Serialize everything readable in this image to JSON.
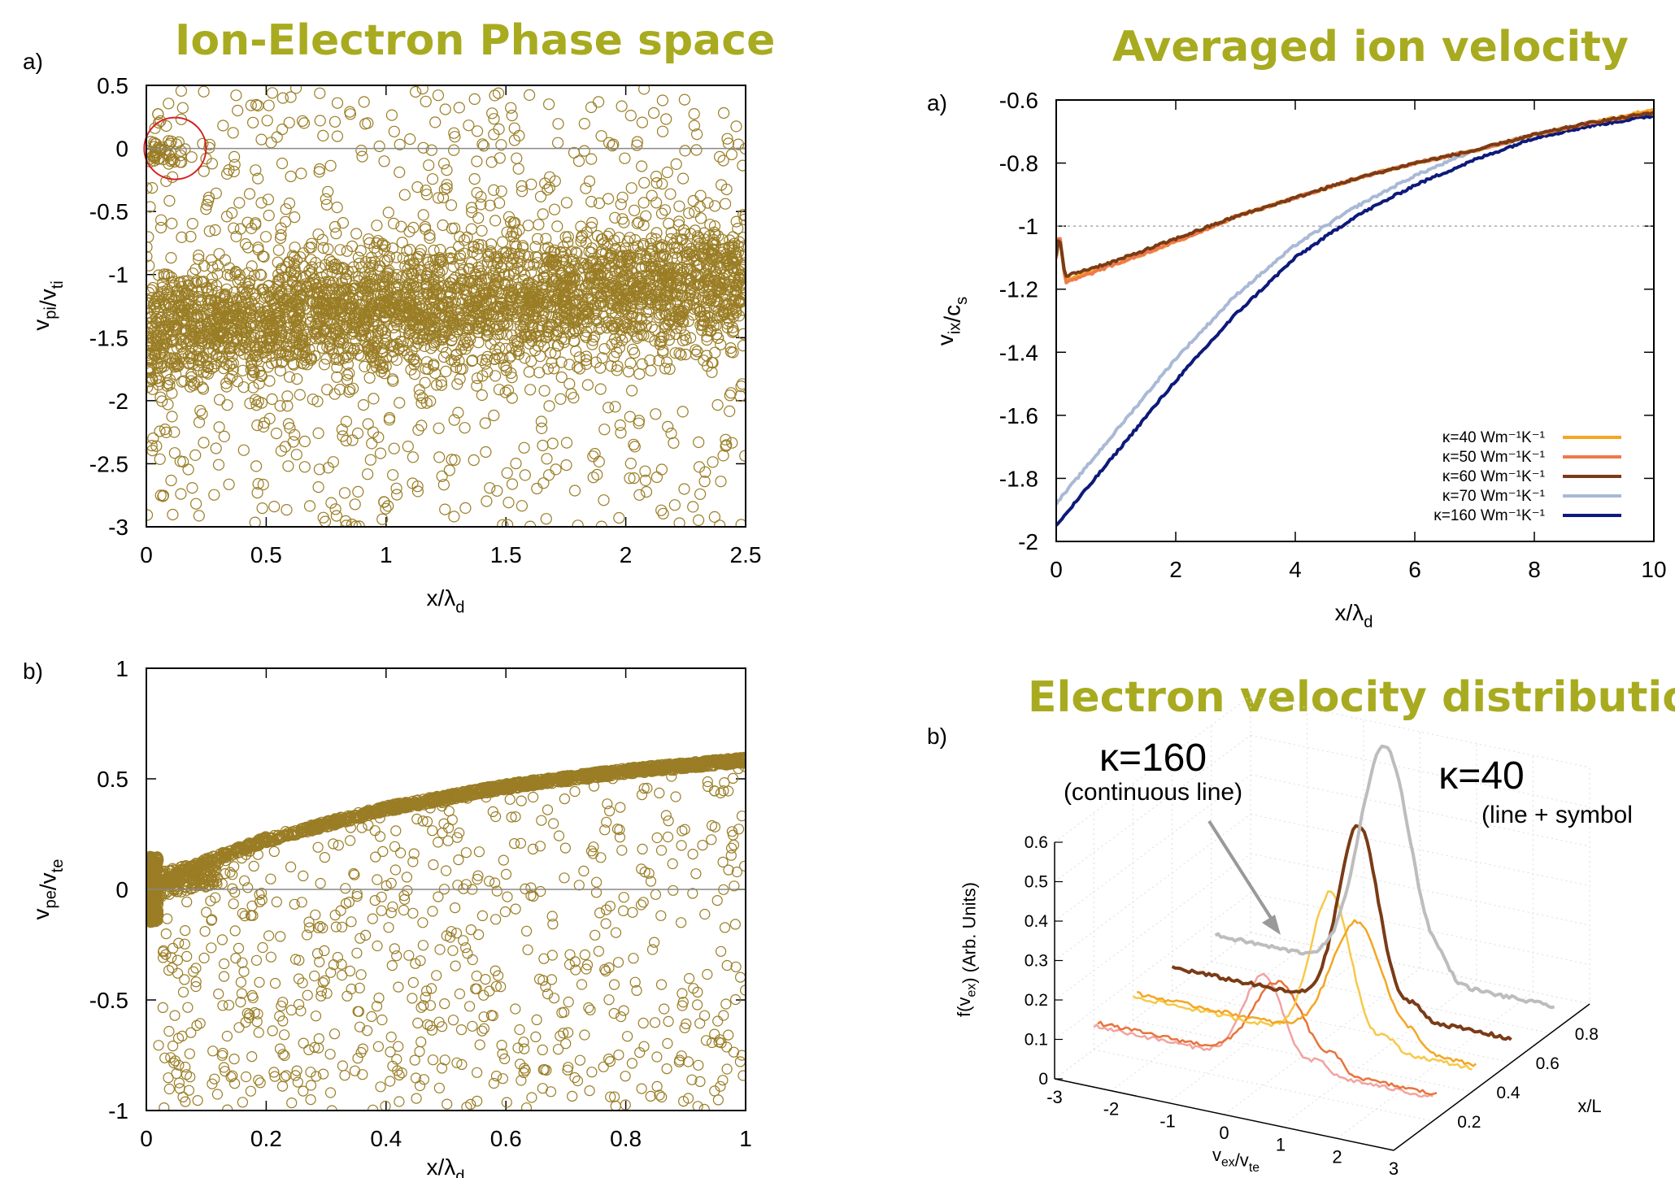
{
  "titles": {
    "phase_space": "Ion-Electron Phase space",
    "avg_velocity": "Averaged ion velocity",
    "edist": "Electron velocity distribution"
  },
  "colors": {
    "title": "#a8ab1f",
    "marker": "#9a7d25",
    "circle_highlight": "#d62020",
    "kappa40": "#f5a623",
    "kappa50": "#ef7a4b",
    "kappa60": "#7a3b16",
    "kappa70": "#a9b9d6",
    "kappa160": "#0d1a7a"
  },
  "chart_data": [
    {
      "id": "ion_phase",
      "type": "scatter",
      "panel_label": "a)",
      "xlabel": "x/λd",
      "ylabel": "vpi/vti",
      "xlim": [
        0,
        2.5
      ],
      "ylim": [
        -3,
        0.5
      ],
      "xticks": [
        "0",
        "0.5",
        "1",
        "1.5",
        "2",
        "2.5"
      ],
      "yticks": [
        "0.5",
        "0",
        "-0.5",
        "-1",
        "-1.5",
        "-2",
        "-2.5",
        "-3"
      ],
      "reference_line": 0,
      "highlight": {
        "x": 0.12,
        "y": 0.0
      },
      "description_of_points": {
        "band_center_start": -1.45,
        "band_center_end": -1.05,
        "band_spread": 0.35,
        "points_in_band": 3000,
        "sparse_points": 800
      }
    },
    {
      "id": "electron_phase",
      "type": "scatter",
      "panel_label": "b)",
      "xlabel": "x/λd",
      "ylabel": "vpe/vte",
      "xlim": [
        0,
        1
      ],
      "ylim": [
        -1,
        1
      ],
      "xticks": [
        "0",
        "0.2",
        "0.4",
        "0.6",
        "0.8",
        "1"
      ],
      "yticks": [
        "1",
        "0.5",
        "0",
        "-0.5",
        "-1"
      ],
      "reference_line": 0,
      "main_branch": {
        "x": [
          0,
          0.05,
          0.1,
          0.2,
          0.4,
          0.6,
          0.8,
          1.0
        ],
        "y": [
          0.0,
          0.08,
          0.14,
          0.24,
          0.38,
          0.48,
          0.55,
          0.6
        ]
      },
      "sparse_points": 700
    },
    {
      "id": "avg_ion_velocity",
      "type": "line",
      "panel_label": "a)",
      "xlabel": "x/λd",
      "ylabel": "vix/cs",
      "xlim": [
        0,
        10
      ],
      "ylim": [
        -2,
        -0.6
      ],
      "xticks": [
        "0",
        "2",
        "4",
        "6",
        "8",
        "10"
      ],
      "yticks": [
        "-0.6",
        "-0.8",
        "-1",
        "-1.2",
        "-1.4",
        "-1.6",
        "-1.8",
        "-2"
      ],
      "reference_line": -1,
      "series": [
        {
          "name": "κ=40 Wm⁻¹K⁻¹",
          "color": "#f5a623",
          "x": [
            0,
            0.05,
            0.15,
            0.3,
            1,
            2,
            3,
            4,
            5,
            6,
            7,
            8,
            9,
            10
          ],
          "y": [
            -1.1,
            -1.02,
            -1.17,
            -1.16,
            -1.12,
            -1.05,
            -0.97,
            -0.91,
            -0.85,
            -0.8,
            -0.76,
            -0.71,
            -0.67,
            -0.63
          ]
        },
        {
          "name": "κ=50 Wm⁻¹K⁻¹",
          "color": "#ef7a4b",
          "x": [
            0,
            0.05,
            0.15,
            0.3,
            1,
            2,
            3,
            4,
            5,
            6,
            7,
            8,
            9,
            10
          ],
          "y": [
            -1.1,
            -1.01,
            -1.18,
            -1.17,
            -1.12,
            -1.05,
            -0.97,
            -0.91,
            -0.85,
            -0.8,
            -0.76,
            -0.71,
            -0.67,
            -0.64
          ]
        },
        {
          "name": "κ=60 Wm⁻¹K⁻¹",
          "color": "#7a3b16",
          "x": [
            0,
            0.05,
            0.15,
            0.3,
            1,
            2,
            3,
            4,
            5,
            6,
            7,
            8,
            9,
            10
          ],
          "y": [
            -1.09,
            -1.03,
            -1.16,
            -1.15,
            -1.11,
            -1.04,
            -0.97,
            -0.91,
            -0.85,
            -0.8,
            -0.76,
            -0.71,
            -0.67,
            -0.64
          ]
        },
        {
          "name": "κ=70 Wm⁻¹K⁻¹",
          "color": "#a9b9d6",
          "x": [
            0,
            1,
            2,
            3,
            4,
            5,
            6,
            7,
            8,
            9,
            10
          ],
          "y": [
            -1.88,
            -1.65,
            -1.42,
            -1.22,
            -1.06,
            -0.94,
            -0.84,
            -0.76,
            -0.71,
            -0.67,
            -0.64
          ]
        },
        {
          "name": "κ=160 Wm⁻¹K⁻¹",
          "color": "#0d1a7a",
          "x": [
            0,
            1,
            2,
            3,
            4,
            5,
            6,
            7,
            8,
            9,
            10
          ],
          "y": [
            -1.95,
            -1.72,
            -1.49,
            -1.28,
            -1.1,
            -0.97,
            -0.87,
            -0.79,
            -0.72,
            -0.68,
            -0.65
          ]
        }
      ],
      "legend_placement": "bottom-right"
    },
    {
      "id": "electron_vdist",
      "type": "line",
      "panel_label": "b)",
      "xlabel": "vex/vte",
      "ylabel": "f(vex) (Arb. Units)",
      "zlabel": "x/L",
      "xticks": [
        "-3",
        "-2",
        "-1",
        "0",
        "1",
        "2",
        "3"
      ],
      "zticks": [
        "0",
        "0.1",
        "0.2",
        "0.3",
        "0.4",
        "0.5",
        "0.6"
      ],
      "depth_ticks": [
        "0.2",
        "0.4",
        "0.6",
        "0.8"
      ],
      "annotations": [
        {
          "kappa": "κ=160",
          "note": "(continuous line)"
        },
        {
          "kappa": "κ=40",
          "note": "(line + symbol"
        }
      ],
      "slices": [
        {
          "depth": 0.2,
          "color": "#f2a3a0",
          "peak_v": 0.0,
          "peak_f": 0.22
        },
        {
          "depth": 0.2,
          "color": "#e8743b",
          "peak_v": 0.2,
          "peak_f": 0.2
        },
        {
          "depth": 0.4,
          "color": "#f7c948",
          "peak_v": 0.5,
          "peak_f": 0.37
        },
        {
          "depth": 0.4,
          "color": "#f4a623",
          "peak_v": 0.9,
          "peak_f": 0.3
        },
        {
          "depth": 0.6,
          "color": "#7a3b16",
          "peak_v": 0.3,
          "peak_f": 0.46
        },
        {
          "depth": 0.8,
          "color": "#bdbdbd",
          "peak_v": 0.0,
          "peak_f": 0.57
        }
      ]
    }
  ]
}
